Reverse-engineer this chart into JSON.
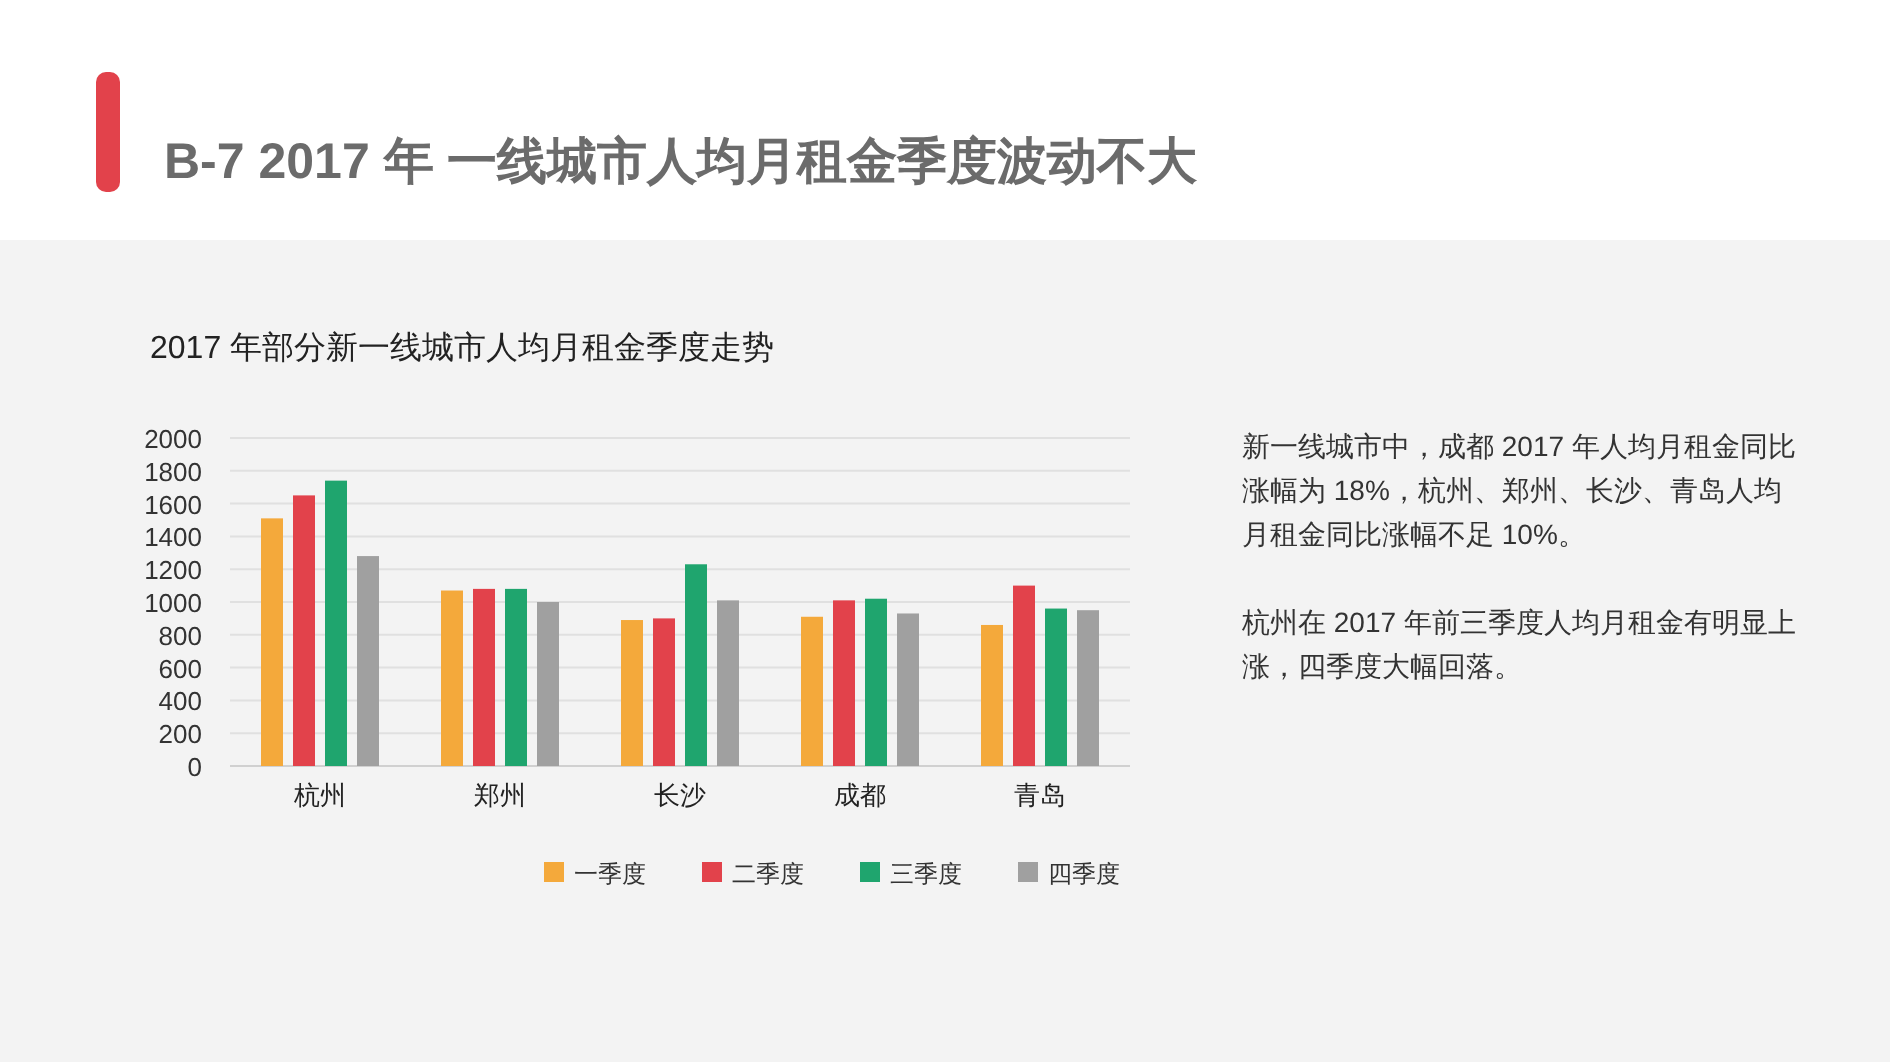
{
  "chart_data": {
    "type": "bar",
    "title": "B-7 2017 年 一线城市人均月租金季度波动不大",
    "subtitle": "2017 年部分新一线城市人均月租金季度走势",
    "categories": [
      "杭州",
      "郑州",
      "长沙",
      "成都",
      "青岛"
    ],
    "series": [
      {
        "name": "一季度",
        "color": "#f4a93b",
        "values": [
          1510,
          1070,
          890,
          910,
          860
        ]
      },
      {
        "name": "二季度",
        "color": "#e2424b",
        "values": [
          1650,
          1080,
          900,
          1010,
          1100
        ]
      },
      {
        "name": "三季度",
        "color": "#1fa56e",
        "values": [
          1740,
          1080,
          1230,
          1020,
          960
        ]
      },
      {
        "name": "四季度",
        "color": "#a0a0a0",
        "values": [
          1280,
          1000,
          1010,
          930,
          950
        ]
      }
    ],
    "ylim": [
      0,
      2000
    ],
    "yticks": [
      0,
      200,
      400,
      600,
      800,
      1000,
      1200,
      1400,
      1600,
      1800,
      2000
    ],
    "grid": "y",
    "legend": "bottom",
    "annotations": [
      "新一线城市中，成都 2017 年人均月租金同比涨幅为 18%，杭州、郑州、长沙、青岛人均月租金同比涨幅不足 10%。",
      "杭州在 2017 年前三季度人均月租金有明显上涨，四季度大幅回落。"
    ]
  }
}
